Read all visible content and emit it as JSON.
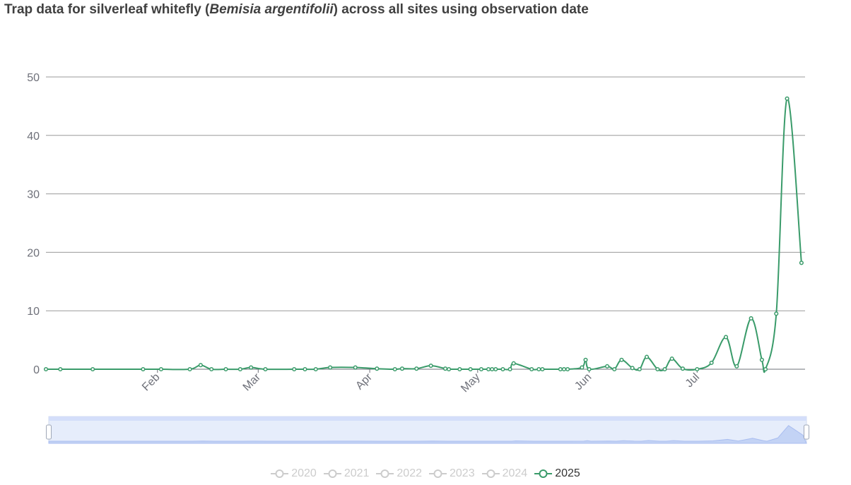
{
  "title": {
    "prefix": "Trap data for silverleaf whitefly (",
    "species": "Bemisia argentifolii",
    "suffix": ") across all sites using observation date"
  },
  "colors": {
    "series": "#3a9b6a",
    "grid": "#9a9a9a",
    "axis": "#6e7079",
    "inactive": "#cccccc"
  },
  "legend": [
    {
      "label": "2020",
      "active": false
    },
    {
      "label": "2021",
      "active": false
    },
    {
      "label": "2022",
      "active": false
    },
    {
      "label": "2023",
      "active": false
    },
    {
      "label": "2024",
      "active": false
    },
    {
      "label": "2025",
      "active": true
    }
  ],
  "chart_data": {
    "type": "line",
    "smooth": true,
    "xlabel": "",
    "ylabel": "",
    "ylim": [
      0,
      50
    ],
    "yticks": [
      0,
      10,
      20,
      30,
      40,
      50
    ],
    "xlim": [
      "2025-01-01",
      "2025-07-31"
    ],
    "xticks": [
      {
        "label": "Feb",
        "date": "2025-02-01"
      },
      {
        "label": "Mar",
        "date": "2025-03-01"
      },
      {
        "label": "Apr",
        "date": "2025-04-01"
      },
      {
        "label": "May",
        "date": "2025-05-01"
      },
      {
        "label": "Jun",
        "date": "2025-06-01"
      },
      {
        "label": "Jul",
        "date": "2025-07-01"
      }
    ],
    "grid": true,
    "data_zoom": true,
    "series": [
      {
        "name": "2025",
        "points": [
          [
            "2025-01-01",
            0
          ],
          [
            "2025-01-05",
            0
          ],
          [
            "2025-01-14",
            0
          ],
          [
            "2025-01-28",
            0
          ],
          [
            "2025-02-02",
            0
          ],
          [
            "2025-02-10",
            0
          ],
          [
            "2025-02-13",
            0.7
          ],
          [
            "2025-02-16",
            0
          ],
          [
            "2025-02-20",
            0
          ],
          [
            "2025-02-24",
            0
          ],
          [
            "2025-02-27",
            0.3
          ],
          [
            "2025-03-03",
            0
          ],
          [
            "2025-03-11",
            0
          ],
          [
            "2025-03-14",
            0
          ],
          [
            "2025-03-17",
            0
          ],
          [
            "2025-03-21",
            0.3
          ],
          [
            "2025-03-28",
            0.3
          ],
          [
            "2025-04-03",
            0.1
          ],
          [
            "2025-04-08",
            0
          ],
          [
            "2025-04-10",
            0.1
          ],
          [
            "2025-04-14",
            0.1
          ],
          [
            "2025-04-18",
            0.6
          ],
          [
            "2025-04-22",
            0.1
          ],
          [
            "2025-04-23",
            0
          ],
          [
            "2025-04-26",
            0
          ],
          [
            "2025-04-29",
            0
          ],
          [
            "2025-05-02",
            0
          ],
          [
            "2025-05-04",
            0
          ],
          [
            "2025-05-05",
            0
          ],
          [
            "2025-05-06",
            0
          ],
          [
            "2025-05-08",
            0
          ],
          [
            "2025-05-10",
            0
          ],
          [
            "2025-05-11",
            1
          ],
          [
            "2025-05-16",
            0
          ],
          [
            "2025-05-18",
            0
          ],
          [
            "2025-05-19",
            0
          ],
          [
            "2025-05-24",
            0
          ],
          [
            "2025-05-25",
            0
          ],
          [
            "2025-05-26",
            0
          ],
          [
            "2025-05-30",
            0.3
          ],
          [
            "2025-05-31",
            1.6
          ],
          [
            "2025-06-01",
            0
          ],
          [
            "2025-06-06",
            0.5
          ],
          [
            "2025-06-08",
            0
          ],
          [
            "2025-06-10",
            1.6
          ],
          [
            "2025-06-13",
            0.2
          ],
          [
            "2025-06-15",
            0
          ],
          [
            "2025-06-17",
            2.1
          ],
          [
            "2025-06-20",
            0
          ],
          [
            "2025-06-22",
            0
          ],
          [
            "2025-06-24",
            1.8
          ],
          [
            "2025-06-27",
            0.1
          ],
          [
            "2025-07-01",
            0
          ],
          [
            "2025-07-05",
            1.1
          ],
          [
            "2025-07-09",
            5.5
          ],
          [
            "2025-07-12",
            0.5
          ],
          [
            "2025-07-16",
            8.7
          ],
          [
            "2025-07-19",
            1.6
          ],
          [
            "2025-07-20",
            0
          ],
          [
            "2025-07-23",
            9.5
          ],
          [
            "2025-07-26",
            46.3
          ],
          [
            "2025-07-30",
            18.2
          ]
        ]
      }
    ]
  }
}
